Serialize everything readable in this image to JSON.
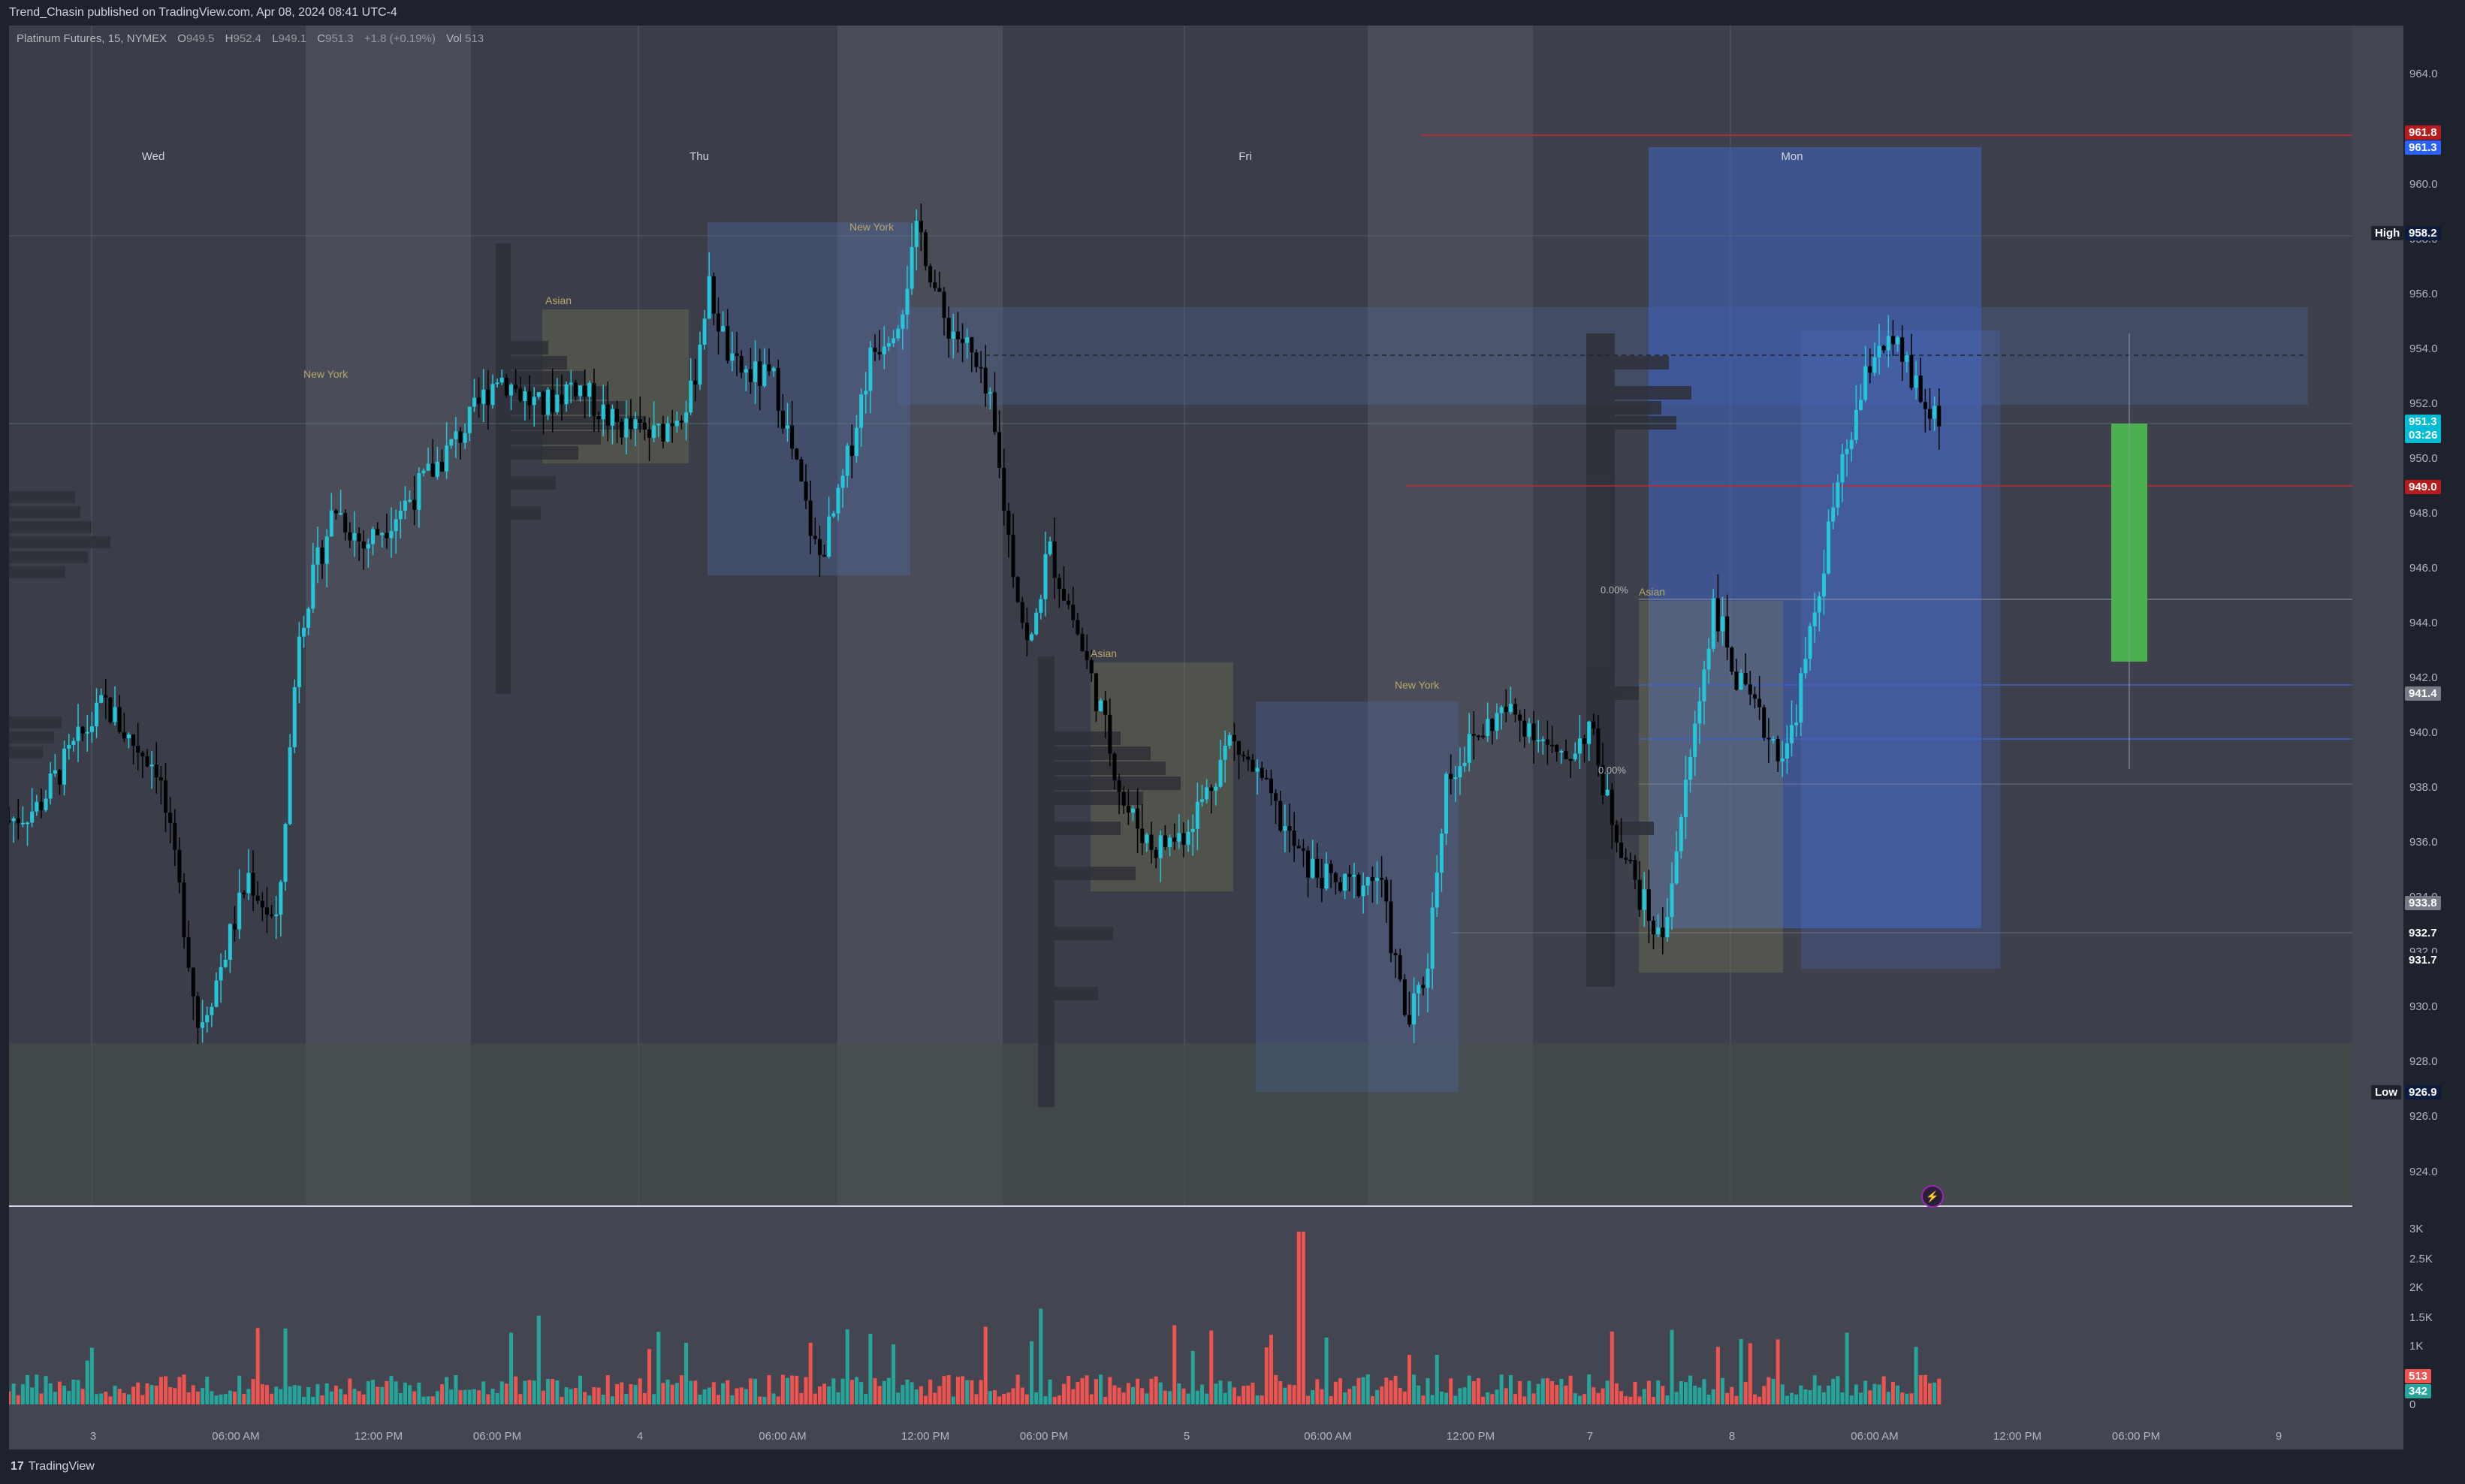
{
  "header": {
    "published_by": "Trend_Chasin published on TradingView.com, Apr 08, 2024 08:41 UTC-4"
  },
  "legend": {
    "symbol": "Platinum Futures, 15, NYMEX",
    "open_label": "O",
    "open": "949.5",
    "high_label": "H",
    "high": "952.4",
    "low_label": "L",
    "low": "949.1",
    "close_label": "C",
    "close": "951.3",
    "change": "+1.8 (+0.19%)",
    "vol_label": "Vol",
    "vol": "513"
  },
  "day_labels": [
    "Wed",
    "Thu",
    "Fri",
    "Mon"
  ],
  "session_labels": {
    "new_york": "New York",
    "asian": "Asian"
  },
  "price_axis": {
    "ticks": [
      "964.0",
      "962.0",
      "960.0",
      "958.0",
      "956.0",
      "954.0",
      "952.0",
      "950.0",
      "948.0",
      "946.0",
      "944.0",
      "942.0",
      "940.0",
      "938.0",
      "936.0",
      "934.0",
      "932.0",
      "930.0",
      "928.0",
      "926.0",
      "924.0"
    ],
    "tags": {
      "r1": "961.8",
      "r2": "961.3",
      "high_label": "High",
      "high": "958.2",
      "last": "951.3",
      "countdown": "03:26",
      "level_949": "949.0",
      "level_941": "941.4",
      "level_933": "933.8",
      "level_932": "932.7",
      "level_931": "931.7",
      "low_label": "Low",
      "low": "926.9"
    }
  },
  "fib_labels": [
    "0.00%",
    "0.00%"
  ],
  "volume_axis": {
    "ticks": [
      "3K",
      "2.5K",
      "2K",
      "1.5K",
      "1K",
      "0"
    ],
    "vol_sell": "513",
    "vol_buy": "342"
  },
  "time_axis": [
    "3",
    "06:00 AM",
    "12:00 PM",
    "06:00 PM",
    "4",
    "06:00 AM",
    "12:00 PM",
    "06:00 PM",
    "5",
    "06:00 AM",
    "12:00 PM",
    "7",
    "8",
    "06:00 AM",
    "12:00 PM",
    "06:00 PM",
    "9"
  ],
  "chart_data": {
    "type": "candlestick",
    "symbol": "Platinum Futures",
    "interval": "15",
    "ylim": [
      922.5,
      965.5
    ],
    "price_path": [
      [
        0,
        936.5
      ],
      [
        0.012,
        937.0
      ],
      [
        0.026,
        939.0
      ],
      [
        0.04,
        940.8
      ],
      [
        0.05,
        939.5
      ],
      [
        0.062,
        938.5
      ],
      [
        0.072,
        933.5
      ],
      [
        0.079,
        929.0
      ],
      [
        0.086,
        930.5
      ],
      [
        0.1,
        934.5
      ],
      [
        0.112,
        932.5
      ],
      [
        0.121,
        943.5
      ],
      [
        0.136,
        948.0
      ],
      [
        0.148,
        946.5
      ],
      [
        0.17,
        948.5
      ],
      [
        0.192,
        951.0
      ],
      [
        0.204,
        952.8
      ],
      [
        0.222,
        951.5
      ],
      [
        0.236,
        952.5
      ],
      [
        0.252,
        951.0
      ],
      [
        0.27,
        950.5
      ],
      [
        0.285,
        952.0
      ],
      [
        0.292,
        956.0
      ],
      [
        0.302,
        953.0
      ],
      [
        0.32,
        952.5
      ],
      [
        0.338,
        946.0
      ],
      [
        0.346,
        948.0
      ],
      [
        0.36,
        953.5
      ],
      [
        0.372,
        955.0
      ],
      [
        0.38,
        958.2
      ],
      [
        0.39,
        954.8
      ],
      [
        0.4,
        953.8
      ],
      [
        0.41,
        951.5
      ],
      [
        0.418,
        946.5
      ],
      [
        0.426,
        942.5
      ],
      [
        0.434,
        946.5
      ],
      [
        0.444,
        944.0
      ],
      [
        0.456,
        940.5
      ],
      [
        0.466,
        937.0
      ],
      [
        0.478,
        935.5
      ],
      [
        0.49,
        936.0
      ],
      [
        0.5,
        937.5
      ],
      [
        0.51,
        939.5
      ],
      [
        0.522,
        938.0
      ],
      [
        0.54,
        935.0
      ],
      [
        0.556,
        934.0
      ],
      [
        0.572,
        934.5
      ],
      [
        0.584,
        929.0
      ],
      [
        0.592,
        931.0
      ],
      [
        0.6,
        938.0
      ],
      [
        0.612,
        939.5
      ],
      [
        0.624,
        940.5
      ],
      [
        0.636,
        940.0
      ],
      [
        0.648,
        938.5
      ],
      [
        0.66,
        940.0
      ],
      [
        0.668,
        937.0
      ],
      [
        0.68,
        934.0
      ],
      [
        0.69,
        932.0
      ],
      [
        0.7,
        937.5
      ],
      [
        0.712,
        944.5
      ],
      [
        0.722,
        941.5
      ],
      [
        0.732,
        940.0
      ],
      [
        0.742,
        938.8
      ],
      [
        0.752,
        943.0
      ],
      [
        0.762,
        948.0
      ],
      [
        0.772,
        951.5
      ],
      [
        0.78,
        954.0
      ],
      [
        0.79,
        953.5
      ],
      [
        0.8,
        951.5
      ],
      [
        0.808,
        951.3
      ]
    ]
  }
}
